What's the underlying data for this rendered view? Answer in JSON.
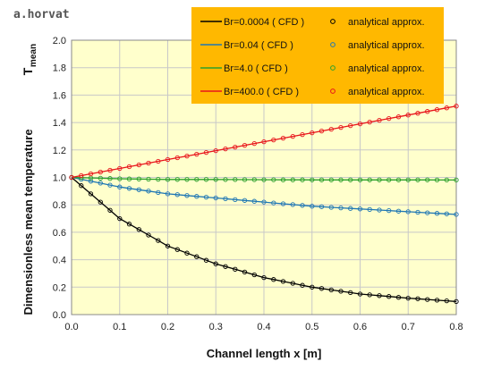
{
  "watermark": "a.horvat",
  "chart_data": {
    "type": "line",
    "title": "",
    "xlabel": "Channel length x [m]",
    "ylabel": "Dimensionless  mean temperature",
    "ylabel_symbol": "T",
    "ylabel_symbol_sub": "mean",
    "xlim": [
      0.0,
      0.8
    ],
    "ylim": [
      0.0,
      2.0
    ],
    "xticks": [
      "0.0",
      "0.1",
      "0.2",
      "0.3",
      "0.4",
      "0.5",
      "0.6",
      "0.7",
      "0.8"
    ],
    "yticks": [
      "0.0",
      "0.2",
      "0.4",
      "0.6",
      "0.8",
      "1.0",
      "1.2",
      "1.4",
      "1.6",
      "1.8",
      "2.0"
    ],
    "grid": true,
    "legend_position": "top-right",
    "series": [
      {
        "name": "Br=0.0004 ( CFD )",
        "marker_label": "analytical approx.",
        "color": "#000000",
        "marker_color": "#000000",
        "x": [
          0.0,
          0.1,
          0.2,
          0.3,
          0.4,
          0.5,
          0.6,
          0.7,
          0.8
        ],
        "y": [
          1.0,
          0.7,
          0.5,
          0.37,
          0.27,
          0.2,
          0.15,
          0.12,
          0.095
        ]
      },
      {
        "name": "Br=0.04 ( CFD )",
        "marker_label": "analytical approx.",
        "color": "#1f77b4",
        "marker_color": "#1f77b4",
        "x": [
          0.0,
          0.1,
          0.2,
          0.3,
          0.4,
          0.5,
          0.6,
          0.7,
          0.8
        ],
        "y": [
          1.0,
          0.93,
          0.88,
          0.85,
          0.82,
          0.79,
          0.77,
          0.75,
          0.73
        ]
      },
      {
        "name": "Br=4.0 ( CFD )",
        "marker_label": "analytical approx.",
        "color": "#2ca02c",
        "marker_color": "#2ca02c",
        "x": [
          0.0,
          0.1,
          0.2,
          0.3,
          0.4,
          0.5,
          0.6,
          0.7,
          0.8
        ],
        "y": [
          1.0,
          0.99,
          0.985,
          0.985,
          0.983,
          0.982,
          0.982,
          0.982,
          0.981
        ]
      },
      {
        "name": "Br=400.0 ( CFD )",
        "marker_label": "analytical approx.",
        "color": "#e8141b",
        "marker_color": "#e8141b",
        "x": [
          0.0,
          0.1,
          0.2,
          0.3,
          0.4,
          0.5,
          0.6,
          0.7,
          0.8
        ],
        "y": [
          1.0,
          1.065,
          1.13,
          1.195,
          1.26,
          1.325,
          1.39,
          1.455,
          1.52
        ]
      }
    ]
  }
}
